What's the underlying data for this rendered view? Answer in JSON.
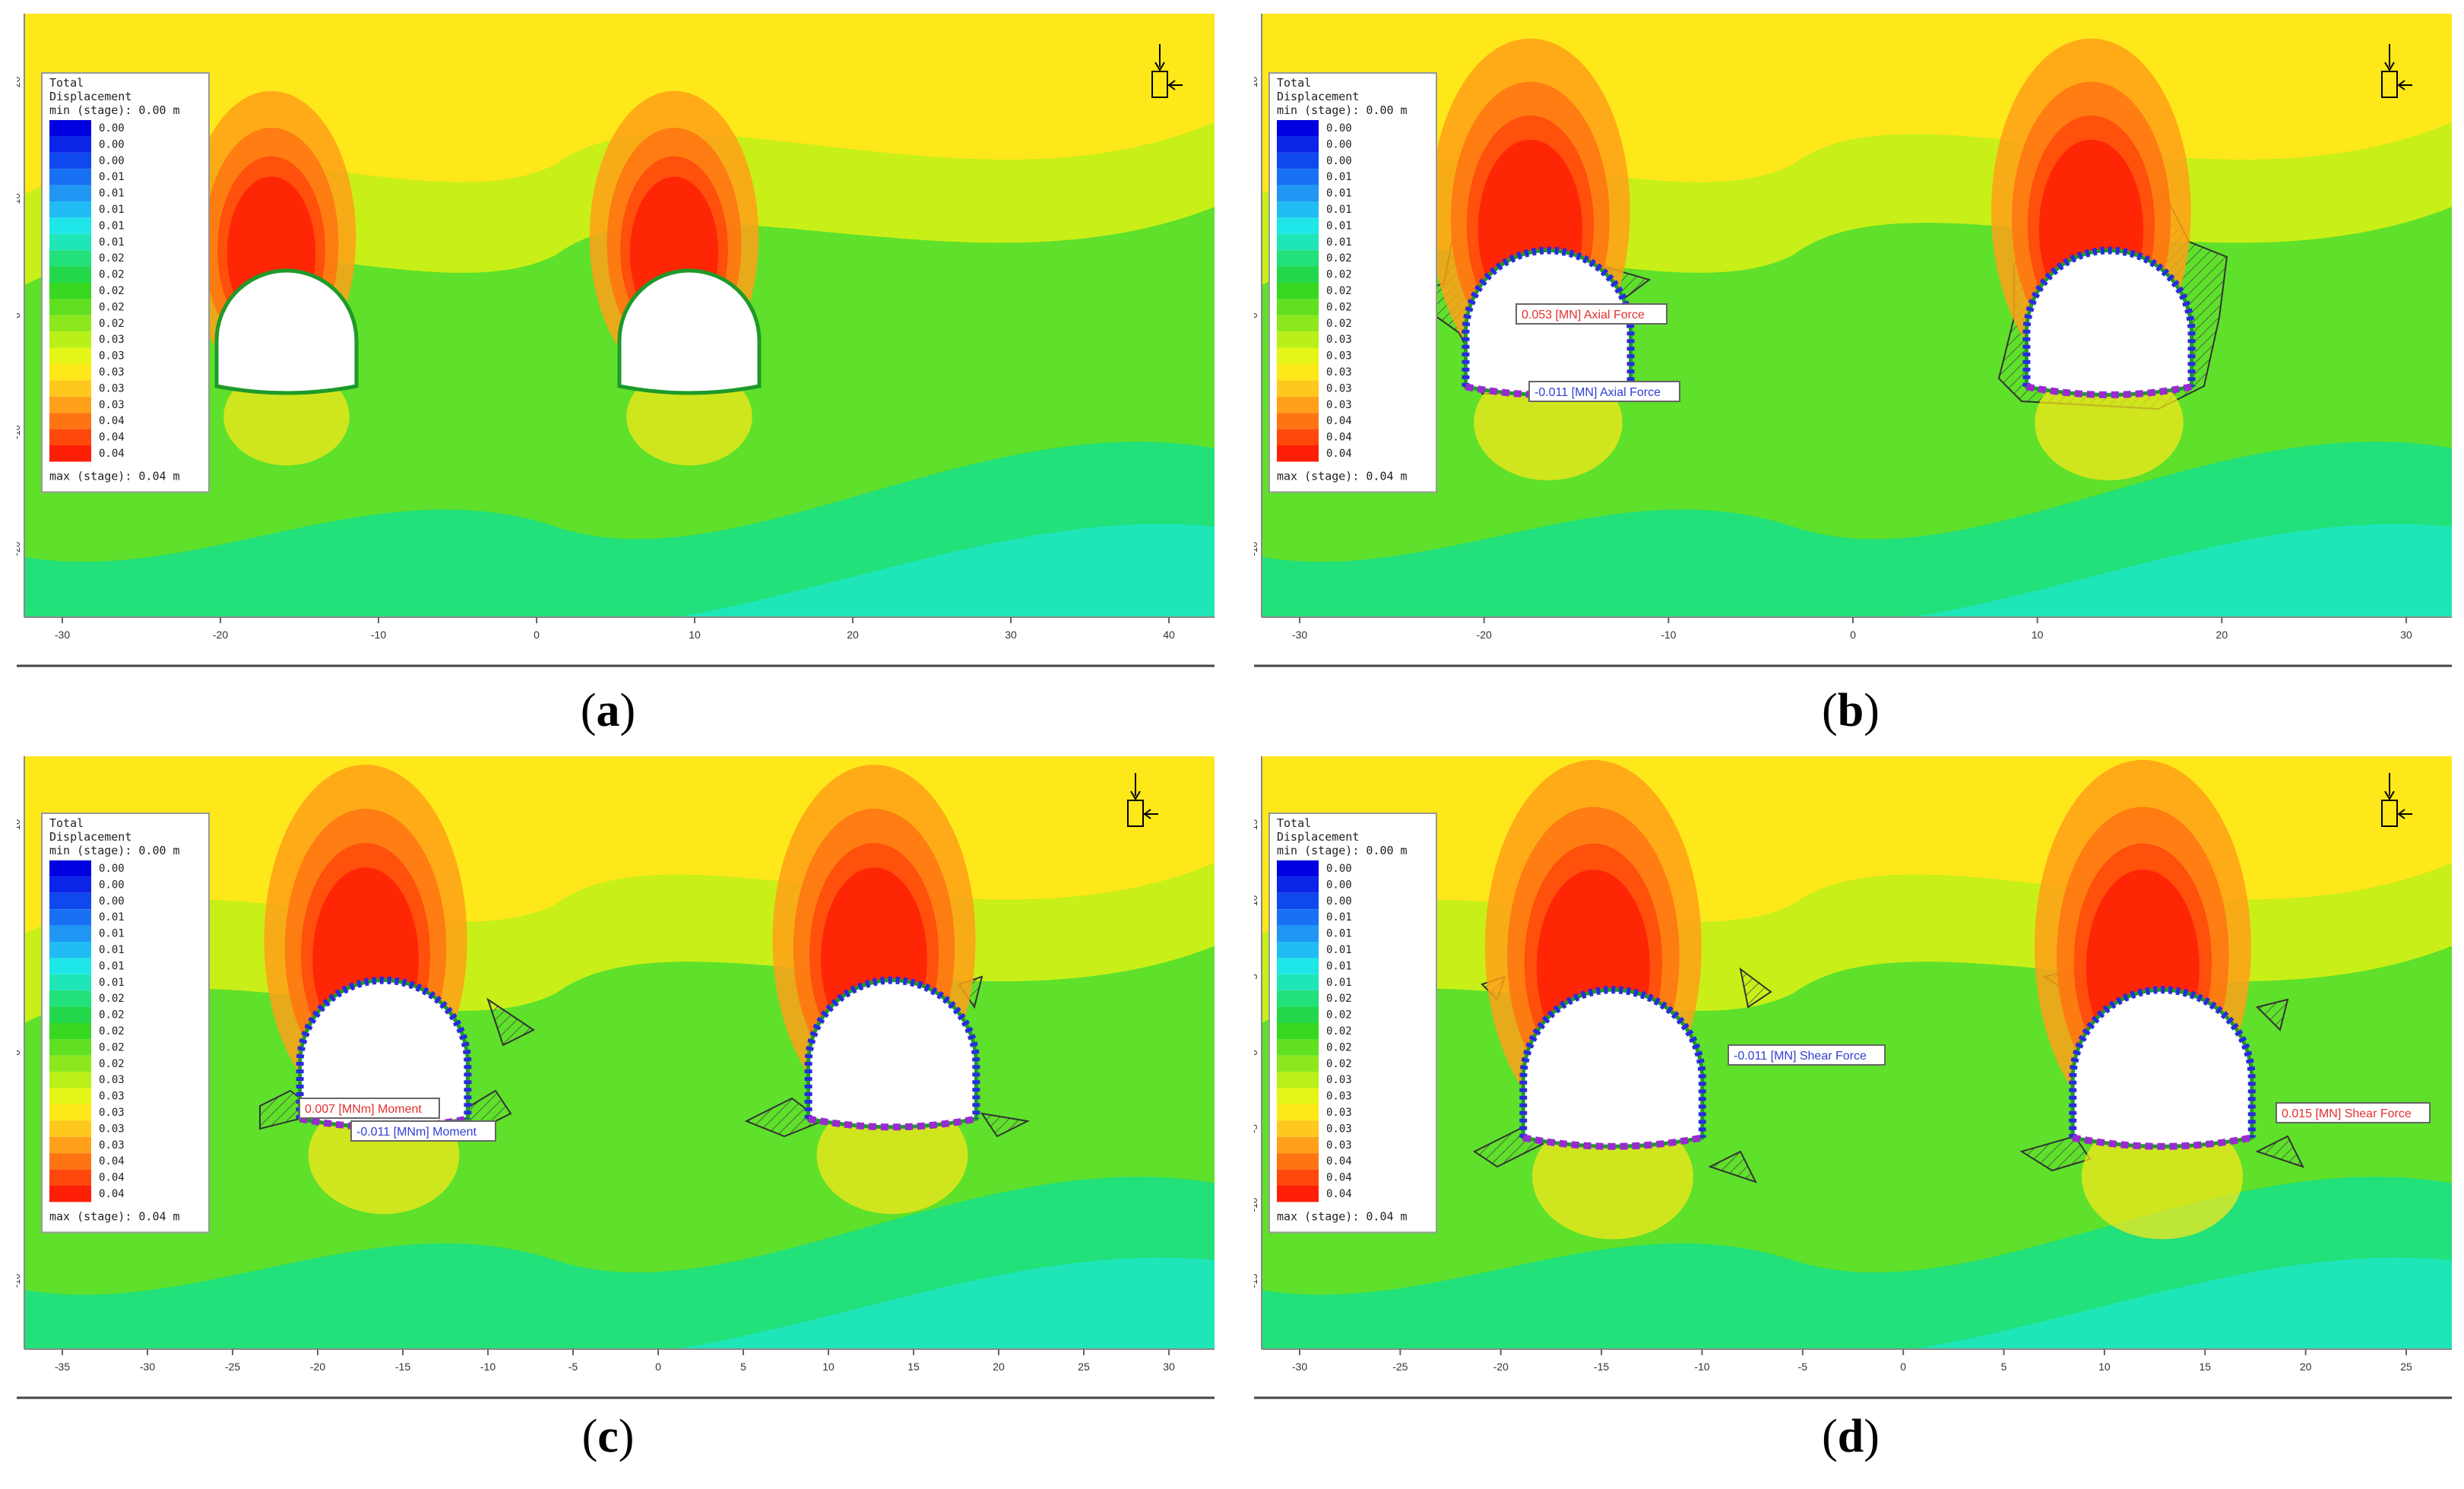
{
  "panels": [
    {
      "letter": "a",
      "legend": {
        "title1": "Total",
        "title2": "Displacement",
        "min": "min (stage): 0.00 m",
        "values": [
          "0.00",
          "0.00",
          "0.00",
          "0.01",
          "0.01",
          "0.01",
          "0.01",
          "0.01",
          "0.02",
          "0.02",
          "0.02",
          "0.02",
          "0.02",
          "0.03",
          "0.03",
          "0.03",
          "0.03",
          "0.03",
          "0.04",
          "0.04",
          "0.04"
        ],
        "max": "max (stage): 0.04 m"
      },
      "x_ticks": [
        "-30",
        "-20",
        "-10",
        "0",
        "10",
        "20",
        "30",
        "40"
      ],
      "y_ticks": [
        "20",
        "10",
        "0",
        "-10",
        "-20"
      ],
      "annotations": []
    },
    {
      "letter": "b",
      "legend": {
        "title1": "Total",
        "title2": "Displacement",
        "min": "min (stage): 0.00 m",
        "values": [
          "0.00",
          "0.00",
          "0.00",
          "0.01",
          "0.01",
          "0.01",
          "0.01",
          "0.01",
          "0.02",
          "0.02",
          "0.02",
          "0.02",
          "0.02",
          "0.03",
          "0.03",
          "0.03",
          "0.03",
          "0.03",
          "0.04",
          "0.04",
          "0.04"
        ],
        "max": "max (stage): 0.04 m"
      },
      "x_ticks": [
        "-30",
        "-20",
        "-10",
        "0",
        "10",
        "20",
        "30"
      ],
      "y_ticks": [
        "10",
        "0",
        "-10"
      ],
      "annotations": [
        {
          "text": "0.053 [MN] Axial Force",
          "color": "#e53030"
        },
        {
          "text": "-0.011 [MN] Axial Force",
          "color": "#2f3fd6"
        }
      ]
    },
    {
      "letter": "c",
      "legend": {
        "title1": "Total",
        "title2": "Displacement",
        "min": "min (stage): 0.00 m",
        "values": [
          "0.00",
          "0.00",
          "0.00",
          "0.01",
          "0.01",
          "0.01",
          "0.01",
          "0.01",
          "0.02",
          "0.02",
          "0.02",
          "0.02",
          "0.02",
          "0.03",
          "0.03",
          "0.03",
          "0.03",
          "0.03",
          "0.04",
          "0.04",
          "0.04"
        ],
        "max": "max (stage): 0.04 m"
      },
      "x_ticks": [
        "-35",
        "-30",
        "-25",
        "-20",
        "-15",
        "-10",
        "-5",
        "0",
        "5",
        "10",
        "15",
        "20",
        "25",
        "30"
      ],
      "y_ticks": [
        "10",
        "0",
        "-10"
      ],
      "annotations": [
        {
          "text": "0.007 [MNm] Moment",
          "color": "#e53030"
        },
        {
          "text": "-0.011 [MNm] Moment",
          "color": "#2f3fd6"
        }
      ]
    },
    {
      "letter": "d",
      "legend": {
        "title1": "Total",
        "title2": "Displacement",
        "min": "min (stage): 0.00 m",
        "values": [
          "0.00",
          "0.00",
          "0.00",
          "0.01",
          "0.01",
          "0.01",
          "0.01",
          "0.01",
          "0.02",
          "0.02",
          "0.02",
          "0.02",
          "0.02",
          "0.03",
          "0.03",
          "0.03",
          "0.03",
          "0.03",
          "0.04",
          "0.04",
          "0.04"
        ],
        "max": "max (stage): 0.04 m"
      },
      "x_ticks": [
        "-30",
        "-25",
        "-20",
        "-15",
        "-10",
        "-5",
        "0",
        "5",
        "10",
        "15",
        "20",
        "25"
      ],
      "y_ticks": [
        "15",
        "10",
        "5",
        "0",
        "-5",
        "-10",
        "-15"
      ],
      "annotations": [
        {
          "text": "-0.011 [MN] Shear Force",
          "color": "#2f3fd6"
        },
        {
          "text": "0.015 [MN] Shear Force",
          "color": "#e53030"
        }
      ]
    }
  ],
  "colors": {
    "scale": [
      "#0000e0",
      "#0a24e8",
      "#1048f0",
      "#1870f4",
      "#2096f4",
      "#22bcf4",
      "#1fe6e8",
      "#1fe6b8",
      "#22e07a",
      "#22d84a",
      "#38d820",
      "#60e020",
      "#8ce81c",
      "#b8f018",
      "#e6f518",
      "#ffe81a",
      "#ffc81c",
      "#ffa018",
      "#ff7412",
      "#ff480c",
      "#ff1e06"
    ],
    "tunnel_lining": "#1e9a2a",
    "axial_bar": "#2a2ae0",
    "invert_bar": "#9a2ad0"
  }
}
